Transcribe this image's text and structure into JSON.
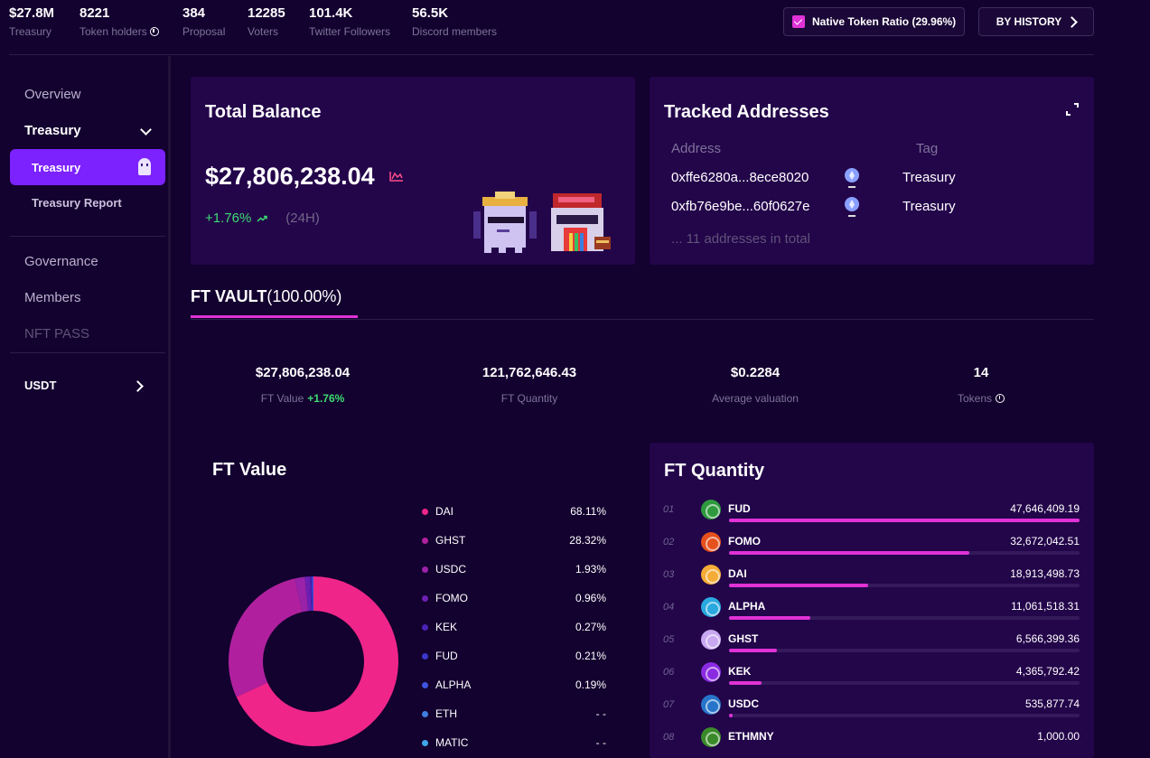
{
  "stats": [
    {
      "value": "$27.8M",
      "label": "Treasury"
    },
    {
      "value": "8221",
      "label": "Token holders"
    },
    {
      "value": "384",
      "label": "Proposal"
    },
    {
      "value": "12285",
      "label": "Voters"
    },
    {
      "value": "101.4K",
      "label": "Twitter Followers"
    },
    {
      "value": "56.5K",
      "label": "Discord members"
    }
  ],
  "header": {
    "native_ratio_label": "Native Token Ratio (29.96%)",
    "history_label": "BY HISTORY"
  },
  "sidebar": {
    "overview": "Overview",
    "treasury_group": "Treasury",
    "treasury_active": "Treasury",
    "treasury_report": "Treasury Report",
    "governance": "Governance",
    "members": "Members",
    "nft_pass": "NFT PASS",
    "currency": "USDT"
  },
  "total_balance": {
    "title": "Total Balance",
    "amount": "$27,806,238.04",
    "change": "+1.76%",
    "period": "(24H)"
  },
  "tracked": {
    "title": "Tracked Addresses",
    "col_address": "Address",
    "col_tag": "Tag",
    "rows": [
      {
        "address": "0xffe6280a...8ece8020",
        "tag": "Treasury"
      },
      {
        "address": "0xfb76e9be...60f0627e",
        "tag": "Treasury"
      }
    ],
    "total": "... 11 addresses in total"
  },
  "vault": {
    "tab_bold": "FT VAULT",
    "tab_pct": "(100.00%)"
  },
  "kpis": {
    "ft_value": "$27,806,238.04",
    "ft_value_label": "FT Value",
    "ft_value_change": "+1.76%",
    "ft_quantity": "121,762,646.43",
    "ft_quantity_label": "FT Quantity",
    "avg_valuation": "$0.2284",
    "avg_valuation_label": "Average valuation",
    "tokens": "14",
    "tokens_label": "Tokens"
  },
  "ft_value": {
    "title": "FT Value",
    "legend": [
      {
        "name": "DAI",
        "pct": "68.11%",
        "color": "#f0258a"
      },
      {
        "name": "GHST",
        "pct": "28.32%",
        "color": "#b0209e"
      },
      {
        "name": "USDC",
        "pct": "1.93%",
        "color": "#9a22a8"
      },
      {
        "name": "FOMO",
        "pct": "0.96%",
        "color": "#6d1fb3"
      },
      {
        "name": "KEK",
        "pct": "0.27%",
        "color": "#4a22b6"
      },
      {
        "name": "FUD",
        "pct": "0.21%",
        "color": "#3b36c9"
      },
      {
        "name": "ALPHA",
        "pct": "0.19%",
        "color": "#3f55e0"
      },
      {
        "name": "ETH",
        "pct": "- -",
        "color": "#3f7fe0"
      },
      {
        "name": "MATIC",
        "pct": "- -",
        "color": "#3fa6e8"
      }
    ]
  },
  "chart_data": {
    "type": "pie",
    "categories": [
      "DAI",
      "GHST",
      "USDC",
      "FOMO",
      "KEK",
      "FUD",
      "ALPHA",
      "ETH",
      "MATIC"
    ],
    "values": [
      68.11,
      28.32,
      1.93,
      0.96,
      0.27,
      0.21,
      0.19,
      0,
      0
    ],
    "colors": [
      "#f0258a",
      "#b0209e",
      "#9a22a8",
      "#6d1fb3",
      "#4a22b6",
      "#3b36c9",
      "#3f55e0",
      "#3f7fe0",
      "#3fa6e8"
    ]
  },
  "ft_quantity": {
    "title": "FT Quantity",
    "rows": [
      {
        "rank": "01",
        "name": "FUD",
        "amount": "47,646,409.19",
        "share": 1.0,
        "color": "#2e9a3e"
      },
      {
        "rank": "02",
        "name": "FOMO",
        "amount": "32,672,042.51",
        "share": 0.6857,
        "color": "#e5501d"
      },
      {
        "rank": "03",
        "name": "DAI",
        "amount": "18,913,498.73",
        "share": 0.397,
        "color": "#f5ac37"
      },
      {
        "rank": "04",
        "name": "ALPHA",
        "amount": "11,061,518.31",
        "share": 0.2322,
        "color": "#2aa9e0"
      },
      {
        "rank": "05",
        "name": "GHST",
        "amount": "6,566,399.36",
        "share": 0.1378,
        "color": "#c8a8f0"
      },
      {
        "rank": "06",
        "name": "KEK",
        "amount": "4,365,792.42",
        "share": 0.0916,
        "color": "#8a2be2"
      },
      {
        "rank": "07",
        "name": "USDC",
        "amount": "535,877.74",
        "share": 0.0112,
        "color": "#2775ca"
      },
      {
        "rank": "08",
        "name": "ETHMNY",
        "amount": "1,000.00",
        "share": 0.0,
        "color": "#3a8a2a"
      }
    ]
  }
}
